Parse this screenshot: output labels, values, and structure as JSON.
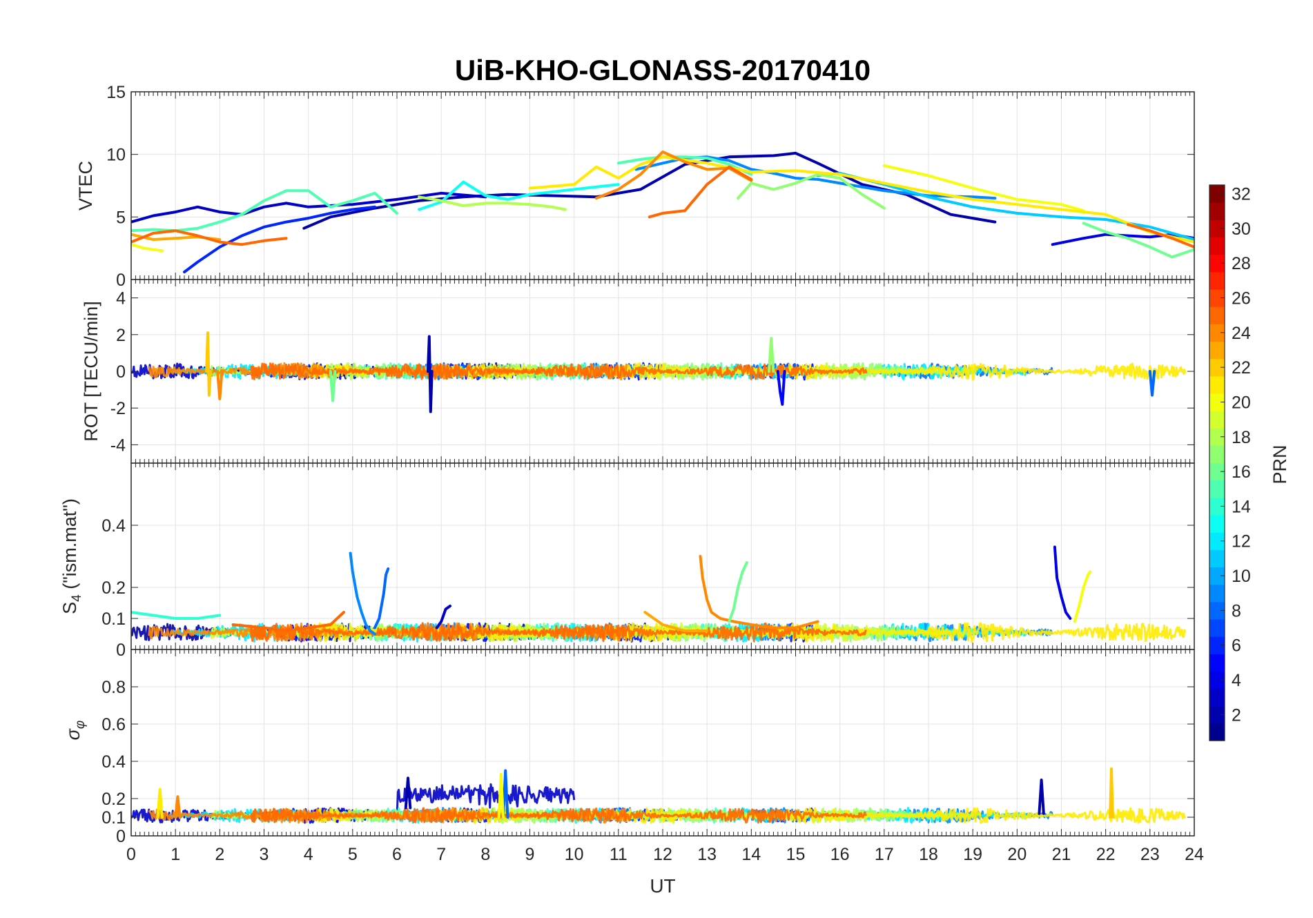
{
  "chart_data": {
    "type": "line",
    "title": "UiB-KHO-GLONASS-20170410",
    "xlabel": "UT",
    "x_ticks": [
      "0",
      "1",
      "2",
      "3",
      "4",
      "5",
      "6",
      "7",
      "8",
      "9",
      "10",
      "11",
      "12",
      "13",
      "14",
      "15",
      "16",
      "17",
      "18",
      "19",
      "20",
      "21",
      "22",
      "23",
      "24"
    ],
    "xlim": [
      0,
      24
    ],
    "grid": true,
    "colorbar": {
      "label": "PRN",
      "range": [
        1,
        32
      ],
      "ticks": [
        "2",
        "4",
        "6",
        "8",
        "10",
        "12",
        "14",
        "16",
        "18",
        "20",
        "22",
        "24",
        "26",
        "28",
        "30",
        "32"
      ],
      "colormap": [
        "#00008f",
        "#0000ff",
        "#0080ff",
        "#00ffff",
        "#80ff80",
        "#ffff00",
        "#ff8000",
        "#ff0000",
        "#800000"
      ]
    },
    "panels": [
      {
        "ylabel": "VTEC",
        "ylim": [
          0,
          15
        ],
        "y_ticks": [
          "0",
          "5",
          "10",
          "15"
        ],
        "series": [
          {
            "prn": 2,
            "x": [
              3.9,
              4.5,
              5.5,
              6.5,
              7.5,
              8.5,
              9.5,
              10.5,
              11.5,
              12.5,
              13.5,
              14.5,
              15.0,
              15.5,
              16.5,
              17.5,
              18.5,
              19.5
            ],
            "y": [
              4.1,
              5.0,
              5.7,
              6.3,
              6.6,
              6.8,
              6.7,
              6.6,
              7.2,
              9.2,
              9.8,
              9.9,
              10.1,
              9.3,
              7.6,
              6.8,
              5.2,
              4.6
            ]
          },
          {
            "prn": 3,
            "x": [
              0.0,
              0.5,
              1.0,
              1.5,
              2.0,
              2.5,
              3.0,
              3.5,
              4.0,
              5.0,
              6.0,
              7.0,
              8.0
            ],
            "y": [
              4.6,
              5.1,
              5.4,
              5.8,
              5.4,
              5.2,
              5.8,
              6.1,
              5.8,
              6.0,
              6.4,
              6.9,
              6.6
            ]
          },
          {
            "prn": 4,
            "x": [
              20.8,
              21.5,
              22.0,
              22.5,
              23.0,
              23.5,
              24.0
            ],
            "y": [
              2.8,
              3.3,
              3.6,
              3.5,
              3.4,
              3.6,
              3.3
            ]
          },
          {
            "prn": 6,
            "x": [
              1.2,
              1.5,
              2.0,
              2.5,
              3.0,
              3.5,
              4.0,
              4.5,
              5.0,
              5.5
            ],
            "y": [
              0.6,
              1.4,
              2.6,
              3.5,
              4.2,
              4.6,
              4.9,
              5.3,
              5.6,
              5.8
            ]
          },
          {
            "prn": 9,
            "x": [
              11.4,
              12.0,
              12.5,
              13.0,
              13.5,
              14.0,
              14.5,
              15.0,
              15.5,
              16.0,
              17.0,
              18.0,
              19.0,
              19.5
            ],
            "y": [
              8.8,
              9.3,
              9.7,
              9.8,
              9.5,
              8.8,
              8.5,
              8.1,
              8.0,
              7.7,
              7.1,
              6.7,
              6.6,
              6.5
            ]
          },
          {
            "prn": 11,
            "x": [
              15.5,
              16.0,
              17.0,
              18.0,
              19.0,
              20.0,
              21.0,
              22.0,
              23.0,
              24.0
            ],
            "y": [
              8.3,
              8.5,
              7.6,
              6.6,
              5.8,
              5.3,
              5.0,
              4.8,
              4.2,
              3.2
            ]
          },
          {
            "prn": 13,
            "x": [
              6.5,
              7.0,
              7.5,
              8.0,
              8.5,
              9.0,
              10.0,
              11.0
            ],
            "y": [
              5.6,
              6.2,
              7.8,
              6.7,
              6.4,
              6.8,
              7.2,
              7.6
            ]
          },
          {
            "prn": 15,
            "x": [
              0.0,
              0.5,
              1.0,
              1.5,
              2.0,
              2.5,
              3.0,
              3.5,
              4.0,
              4.5,
              5.0,
              5.5,
              6.0
            ],
            "y": [
              3.9,
              4.0,
              3.9,
              4.1,
              4.6,
              5.2,
              6.3,
              7.1,
              7.1,
              5.8,
              6.3,
              6.9,
              5.3
            ]
          },
          {
            "prn": 15,
            "x": [
              11.0,
              11.5,
              12.0,
              12.5,
              13.0,
              13.5,
              14.0
            ],
            "y": [
              9.3,
              9.6,
              9.8,
              9.8,
              9.7,
              9.2,
              8.4
            ]
          },
          {
            "prn": 16,
            "x": [
              21.5,
              22.0,
              22.5,
              23.0,
              23.5,
              24.0
            ],
            "y": [
              4.5,
              3.8,
              3.3,
              2.6,
              1.8,
              2.4
            ]
          },
          {
            "prn": 17,
            "x": [
              13.7,
              14.0,
              14.5,
              15.0,
              15.5,
              16.0,
              16.5,
              17.0
            ],
            "y": [
              6.5,
              7.7,
              7.2,
              7.7,
              8.4,
              8.1,
              6.8,
              5.7
            ]
          },
          {
            "prn": 18,
            "x": [
              6.5,
              7.0,
              7.5,
              8.0,
              8.5,
              9.0,
              9.5,
              9.8
            ],
            "y": [
              6.6,
              6.3,
              5.9,
              6.1,
              6.1,
              6.0,
              5.8,
              5.6
            ]
          },
          {
            "prn": 20,
            "x": [
              17.0,
              18.0,
              19.0,
              20.0,
              21.0,
              21.5
            ],
            "y": [
              9.1,
              8.3,
              7.3,
              6.4,
              6.0,
              5.5
            ]
          },
          {
            "prn": 20,
            "x": [
              0.0,
              0.3,
              0.7
            ],
            "y": [
              2.8,
              2.5,
              2.3
            ]
          },
          {
            "prn": 21,
            "x": [
              9.0,
              10.0,
              10.5,
              11.0,
              11.5,
              12.0,
              13.0,
              14.0,
              15.0,
              16.0,
              17.0,
              18.0,
              19.0,
              20.0,
              21.0,
              22.0,
              23.0,
              24.0
            ],
            "y": [
              7.3,
              7.6,
              9.0,
              8.1,
              9.2,
              9.8,
              9.3,
              8.6,
              8.7,
              8.4,
              7.7,
              7.0,
              6.4,
              6.0,
              5.6,
              5.2,
              3.8,
              3.0
            ]
          },
          {
            "prn": 23,
            "x": [
              0.0,
              0.5,
              1.0,
              1.5,
              2.0
            ],
            "y": [
              3.6,
              3.2,
              3.3,
              3.4,
              3.2
            ]
          },
          {
            "prn": 24,
            "x": [
              10.5,
              11.0,
              11.5,
              12.0,
              12.5,
              13.0,
              13.5,
              14.0
            ],
            "y": [
              6.5,
              7.2,
              8.4,
              10.2,
              9.4,
              8.8,
              8.9,
              7.9
            ]
          },
          {
            "prn": 25,
            "x": [
              0.0,
              0.5,
              1.0,
              1.5,
              2.0,
              2.5,
              3.0,
              3.5
            ],
            "y": [
              3.0,
              3.7,
              3.9,
              3.5,
              3.0,
              2.8,
              3.1,
              3.3
            ]
          },
          {
            "prn": 25,
            "x": [
              11.7,
              12.0,
              12.5,
              13.0,
              13.5,
              14.0
            ],
            "y": [
              5.0,
              5.3,
              5.5,
              7.6,
              9.0,
              8.0
            ]
          },
          {
            "prn": 25,
            "x": [
              22.5,
              23.0,
              23.5,
              24.0
            ],
            "y": [
              4.4,
              3.9,
              3.3,
              2.6
            ]
          }
        ]
      },
      {
        "ylabel": "ROT [TECU/min]",
        "ylim": [
          -5,
          5
        ],
        "y_ticks": [
          "-4",
          "-2",
          "0",
          "2",
          "4"
        ],
        "series": [
          {
            "prn": 2,
            "x": [
              6.7,
              6.73,
              6.76,
              6.79
            ],
            "y": [
              0.0,
              1.9,
              -2.2,
              0.0
            ]
          },
          {
            "prn": 5,
            "x": [
              14.6,
              14.65,
              14.7,
              14.75
            ],
            "y": [
              0.0,
              -1.1,
              -1.8,
              0.0
            ]
          },
          {
            "prn": 8,
            "x": [
              23.0,
              23.05,
              23.1
            ],
            "y": [
              0.0,
              -1.3,
              0.0
            ]
          },
          {
            "prn": 17,
            "x": [
              14.4,
              14.45,
              14.5
            ],
            "y": [
              0.0,
              1.8,
              0.0
            ]
          },
          {
            "prn": 16,
            "x": [
              4.5,
              4.55,
              4.6
            ],
            "y": [
              0.0,
              -1.6,
              0.0
            ]
          },
          {
            "prn": 22,
            "x": [
              1.7,
              1.73,
              1.76,
              1.79
            ],
            "y": [
              0.0,
              2.1,
              -1.3,
              0.0
            ]
          },
          {
            "prn": 24,
            "x": [
              1.95,
              2.0,
              2.05
            ],
            "y": [
              0.0,
              -1.5,
              0.0
            ]
          }
        ]
      },
      {
        "ylabel": "S4 (\"ism.mat\")",
        "ylabel_main": "S",
        "ylabel_sub": "4",
        "ylabel_rest": " (\"ism.mat\")",
        "ylim": [
          0,
          0.6
        ],
        "y_ticks": [
          "0",
          "0.1",
          "0.2",
          "0.4"
        ],
        "series": [
          {
            "prn": 9,
            "x": [
              4.95,
              5.0,
              5.1,
              5.2,
              5.3,
              5.4,
              5.5
            ],
            "y": [
              0.31,
              0.25,
              0.17,
              0.12,
              0.08,
              0.06,
              0.05
            ]
          },
          {
            "prn": 8,
            "x": [
              5.5,
              5.6,
              5.7,
              5.75,
              5.8
            ],
            "y": [
              0.07,
              0.1,
              0.18,
              0.24,
              0.26
            ]
          },
          {
            "prn": 3,
            "x": [
              6.9,
              7.0,
              7.1,
              7.2
            ],
            "y": [
              0.07,
              0.09,
              0.13,
              0.14
            ]
          },
          {
            "prn": 24,
            "x": [
              12.85,
              12.9,
              13.0,
              13.1,
              13.3,
              13.6,
              14.0,
              14.5,
              15.0,
              15.5
            ],
            "y": [
              0.3,
              0.23,
              0.16,
              0.12,
              0.1,
              0.09,
              0.08,
              0.07,
              0.07,
              0.09
            ]
          },
          {
            "prn": 16,
            "x": [
              13.5,
              13.6,
              13.7,
              13.8,
              13.9
            ],
            "y": [
              0.09,
              0.13,
              0.2,
              0.25,
              0.28
            ]
          },
          {
            "prn": 4,
            "x": [
              20.85,
              20.9,
              21.0,
              21.1,
              21.2
            ],
            "y": [
              0.33,
              0.23,
              0.17,
              0.12,
              0.1
            ]
          },
          {
            "prn": 20,
            "x": [
              21.3,
              21.4,
              21.5,
              21.6,
              21.65
            ],
            "y": [
              0.09,
              0.14,
              0.2,
              0.24,
              0.25
            ]
          },
          {
            "prn": 14,
            "x": [
              0.0,
              0.5,
              1.0,
              1.5,
              2.0
            ],
            "y": [
              0.12,
              0.11,
              0.1,
              0.1,
              0.11
            ]
          },
          {
            "prn": 25,
            "x": [
              2.3,
              3.0,
              3.5,
              4.0,
              4.5,
              4.8
            ],
            "y": [
              0.08,
              0.07,
              0.06,
              0.07,
              0.08,
              0.12
            ]
          },
          {
            "prn": 23,
            "x": [
              11.6,
              12.0,
              12.5,
              13.0
            ],
            "y": [
              0.12,
              0.08,
              0.06,
              0.06
            ]
          }
        ]
      },
      {
        "ylabel": "σφ",
        "ylabel_main": "σ",
        "ylabel_sub": "φ",
        "ylim": [
          0,
          1
        ],
        "y_ticks": [
          "0",
          "0.1",
          "0.2",
          "0.4",
          "0.6",
          "0.8"
        ],
        "series": [
          {
            "prn": 8,
            "x": [
              8.4,
              8.45,
              8.5
            ],
            "y": [
              0.1,
              0.35,
              0.1
            ]
          },
          {
            "prn": 20,
            "x": [
              8.3,
              8.35,
              8.4
            ],
            "y": [
              0.1,
              0.33,
              0.1
            ]
          },
          {
            "prn": 22,
            "x": [
              22.1,
              22.13,
              22.16
            ],
            "y": [
              0.1,
              0.36,
              0.1
            ]
          },
          {
            "prn": 21,
            "x": [
              0.6,
              0.65,
              0.7
            ],
            "y": [
              0.1,
              0.25,
              0.1
            ]
          },
          {
            "prn": 24,
            "x": [
              1.0,
              1.05,
              1.1
            ],
            "y": [
              0.1,
              0.21,
              0.1
            ]
          },
          {
            "prn": 2,
            "x": [
              6.2,
              6.25,
              6.3
            ],
            "y": [
              0.15,
              0.31,
              0.15
            ]
          },
          {
            "prn": 2,
            "x": [
              20.5,
              20.55,
              20.6
            ],
            "y": [
              0.12,
              0.3,
              0.12
            ]
          }
        ]
      }
    ]
  }
}
